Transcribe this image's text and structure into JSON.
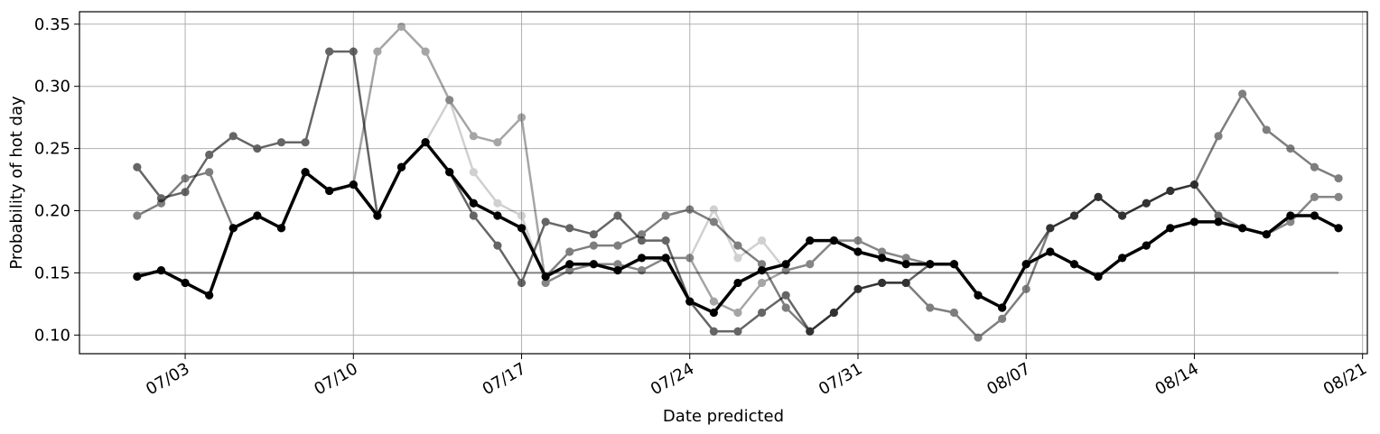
{
  "chart_data": {
    "type": "line",
    "xlabel": "Date predicted",
    "ylabel": "Probability of hot day",
    "x_start": "07/01",
    "ylim": [
      0.085,
      0.36
    ],
    "xlim_days": [
      -2.4,
      51.2
    ],
    "grid": true,
    "yticks": [
      0.1,
      0.15,
      0.2,
      0.25,
      0.3,
      0.35
    ],
    "ytick_labels": [
      "0.10",
      "0.15",
      "0.20",
      "0.25",
      "0.30",
      "0.35"
    ],
    "xtick_labels": [
      "07/03",
      "07/10",
      "07/17",
      "07/24",
      "07/31",
      "08/07",
      "08/14",
      "08/21"
    ],
    "xtick_days": [
      2,
      9,
      16,
      23,
      30,
      37,
      44,
      51
    ],
    "baseline": {
      "value": 0.15,
      "x_from_day": 0,
      "x_to_day": 50,
      "color": "#808080"
    },
    "series": [
      {
        "color": "#000000",
        "opacity": 0.6,
        "width": 2.5,
        "x_days": [
          0,
          1,
          2,
          3,
          4,
          5,
          6,
          7,
          8,
          9,
          10,
          11,
          12,
          13,
          14,
          15,
          16,
          17,
          18,
          19,
          20,
          21,
          22,
          23,
          24,
          25,
          26,
          27,
          28,
          29,
          30,
          31,
          32,
          33,
          34,
          35,
          36,
          37,
          38,
          39,
          40,
          41,
          42,
          43,
          44,
          45,
          46,
          47,
          48,
          49,
          50
        ],
        "values": [
          0.235,
          0.21,
          0.215,
          0.245,
          0.26,
          0.25,
          0.255,
          0.255,
          0.328,
          0.328,
          0.196,
          0.235,
          0.255,
          0.231,
          0.196,
          0.172,
          0.142,
          0.191,
          0.186,
          0.181,
          0.196,
          0.176,
          0.176,
          0.127,
          0.103,
          0.103,
          0.118,
          0.132,
          0.103,
          0.118,
          0.137,
          0.142,
          0.142,
          0.157,
          0.157,
          0.132,
          0.122,
          0.157,
          0.186,
          0.196,
          0.211,
          0.196,
          0.206,
          0.216,
          0.221,
          0.196,
          0.186,
          0.181,
          0.196,
          0.196,
          0.186
        ]
      },
      {
        "color": "#000000",
        "opacity": 0.5,
        "width": 2.5,
        "x_days": [
          0,
          1,
          2,
          3,
          4,
          5,
          6,
          7,
          8,
          9,
          10,
          11,
          12,
          13,
          14,
          15,
          16,
          17,
          18,
          19,
          20,
          21,
          22,
          23,
          24,
          25,
          26,
          27,
          28,
          29,
          30,
          31,
          32,
          33,
          34,
          35,
          36,
          37,
          38,
          39,
          40,
          41,
          42,
          43,
          44,
          45,
          46,
          47,
          48,
          49,
          50
        ],
        "values": [
          0.196,
          0.206,
          0.226,
          0.231,
          0.186,
          0.196,
          0.186,
          0.231,
          0.216,
          0.221,
          0.196,
          0.235,
          0.255,
          0.231,
          0.206,
          0.196,
          0.186,
          0.147,
          0.167,
          0.172,
          0.172,
          0.181,
          0.196,
          0.201,
          0.191,
          0.172,
          0.157,
          0.122,
          0.103,
          0.118,
          0.137,
          0.142,
          0.142,
          0.122,
          0.118,
          0.098,
          0.113,
          0.137,
          0.186,
          0.196,
          0.211,
          0.196,
          0.206,
          0.216,
          0.221,
          0.26,
          0.294,
          0.265,
          0.25,
          0.235,
          0.226
        ]
      },
      {
        "color": "#000000",
        "opacity": 0.35,
        "width": 2.5,
        "x_days": [
          0,
          1,
          2,
          3,
          4,
          5,
          6,
          7,
          8,
          9,
          10,
          11,
          12,
          13,
          14,
          15,
          16,
          17,
          18,
          19,
          20,
          21,
          22,
          23,
          24,
          25,
          26,
          27,
          28,
          29,
          30,
          31,
          32,
          33,
          34,
          35,
          36,
          37,
          38,
          39,
          40,
          41,
          42,
          43,
          44,
          45,
          46,
          47,
          48,
          49,
          50
        ],
        "values": [
          0.147,
          0.152,
          0.142,
          0.132,
          0.186,
          0.196,
          0.186,
          0.231,
          0.216,
          0.221,
          0.328,
          0.348,
          0.328,
          0.289,
          0.26,
          0.255,
          0.275,
          0.142,
          0.152,
          0.157,
          0.157,
          0.152,
          0.162,
          0.162,
          0.127,
          0.118,
          0.142,
          0.152,
          0.157,
          0.176,
          0.176,
          0.167,
          0.162,
          0.157,
          0.157,
          0.132,
          0.122,
          0.157,
          0.167,
          0.157,
          0.147,
          0.162,
          0.172,
          0.186,
          0.191,
          0.191,
          0.186,
          0.181,
          0.191,
          0.211,
          0.211
        ]
      },
      {
        "color": "#000000",
        "opacity": 0.18,
        "width": 2.5,
        "x_days": [
          12,
          13,
          14,
          15,
          16,
          17,
          18,
          19,
          20,
          21,
          22,
          23,
          24,
          25,
          26,
          27,
          28,
          29,
          30,
          31,
          32,
          33,
          34,
          35,
          36,
          37,
          38,
          39,
          40,
          41,
          42,
          43,
          44,
          45,
          46,
          47,
          48,
          49,
          50
        ],
        "values": [
          0.255,
          0.289,
          0.231,
          0.206,
          0.196,
          0.142,
          0.152,
          0.157,
          0.157,
          0.152,
          0.162,
          0.162,
          0.201,
          0.162,
          0.176,
          0.152,
          0.157,
          0.176,
          0.176,
          0.167,
          0.162,
          0.157,
          0.157,
          0.132,
          0.122,
          0.157,
          0.167,
          0.157,
          0.147,
          0.162,
          0.172,
          0.186,
          0.191,
          0.191,
          0.186,
          0.181,
          0.191,
          0.211,
          0.211
        ]
      },
      {
        "color": "#000000",
        "opacity": 1.0,
        "width": 3.5,
        "x_days": [
          0,
          1,
          2,
          3,
          4,
          5,
          6,
          7,
          8,
          9,
          10,
          11,
          12,
          13,
          14,
          15,
          16,
          17,
          18,
          19,
          20,
          21,
          22,
          23,
          24,
          25,
          26,
          27,
          28,
          29,
          30,
          31,
          32,
          33,
          34,
          35,
          36,
          37,
          38,
          39,
          40,
          41,
          42,
          43,
          44,
          45,
          46,
          47,
          48,
          49,
          50
        ],
        "values": [
          0.147,
          0.152,
          0.142,
          0.132,
          0.186,
          0.196,
          0.186,
          0.231,
          0.216,
          0.221,
          0.196,
          0.235,
          0.255,
          0.231,
          0.206,
          0.196,
          0.186,
          0.147,
          0.157,
          0.157,
          0.152,
          0.162,
          0.162,
          0.127,
          0.118,
          0.142,
          0.152,
          0.157,
          0.176,
          0.176,
          0.167,
          0.162,
          0.157,
          0.157,
          0.157,
          0.132,
          0.122,
          0.157,
          0.167,
          0.157,
          0.147,
          0.162,
          0.172,
          0.186,
          0.191,
          0.191,
          0.186,
          0.181,
          0.196,
          0.196,
          0.186
        ]
      }
    ]
  }
}
